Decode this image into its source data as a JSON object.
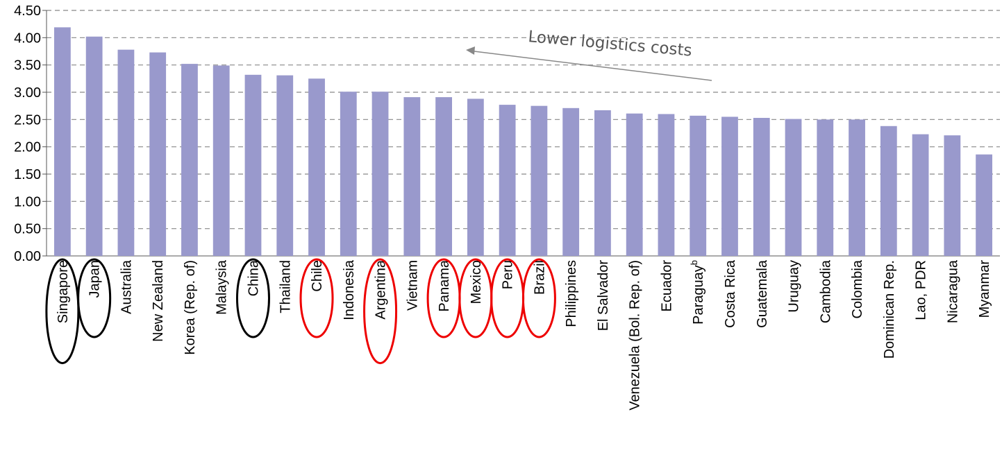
{
  "chart_data": {
    "type": "bar",
    "title": "",
    "xlabel": "",
    "ylabel": "",
    "ylim": [
      0,
      4.5
    ],
    "yticks": [
      "0.00",
      "0.50",
      "1.00",
      "1.50",
      "2.00",
      "2.50",
      "3.00",
      "3.50",
      "4.00",
      "4.50"
    ],
    "grid": true,
    "categories": [
      "Singapore",
      "Japan",
      "Australia",
      "New Zealand",
      "Korea (Rep. of)",
      "Malaysia",
      "China",
      "Thailand",
      "Chile",
      "Indonesia",
      "Argentina",
      "Vietnam",
      "Panama",
      "Mexico",
      "Peru",
      "Brazil",
      "Philippines",
      "El Salvador",
      "Venezuela (Bol. Rep. of)",
      "Ecuador",
      "Paraguay",
      "Costa Rica",
      "Guatemala",
      "Uruguay",
      "Cambodia",
      "Colombia",
      "Dominican Rep.",
      "Lao, PDR",
      "Nicaragua",
      "Myanmar"
    ],
    "values": [
      4.19,
      4.02,
      3.78,
      3.73,
      3.52,
      3.49,
      3.32,
      3.31,
      3.25,
      3.01,
      3.01,
      2.91,
      2.91,
      2.88,
      2.77,
      2.75,
      2.71,
      2.67,
      2.61,
      2.6,
      2.57,
      2.55,
      2.53,
      2.51,
      2.5,
      2.5,
      2.38,
      2.23,
      2.21,
      1.86
    ],
    "superscripts": {
      "Paraguay": "b"
    },
    "circled_black": [
      "Singapore",
      "Japan",
      "China"
    ],
    "circled_red": [
      "Chile",
      "Argentina",
      "Panama",
      "Mexico",
      "Peru",
      "Brazil"
    ],
    "annotation": "Lower logistics costs",
    "colors": {
      "bar": "#9999cc",
      "grid": "#888888",
      "black_circle": "#000000",
      "red_circle": "#ee0000",
      "arrow": "#888888"
    }
  }
}
